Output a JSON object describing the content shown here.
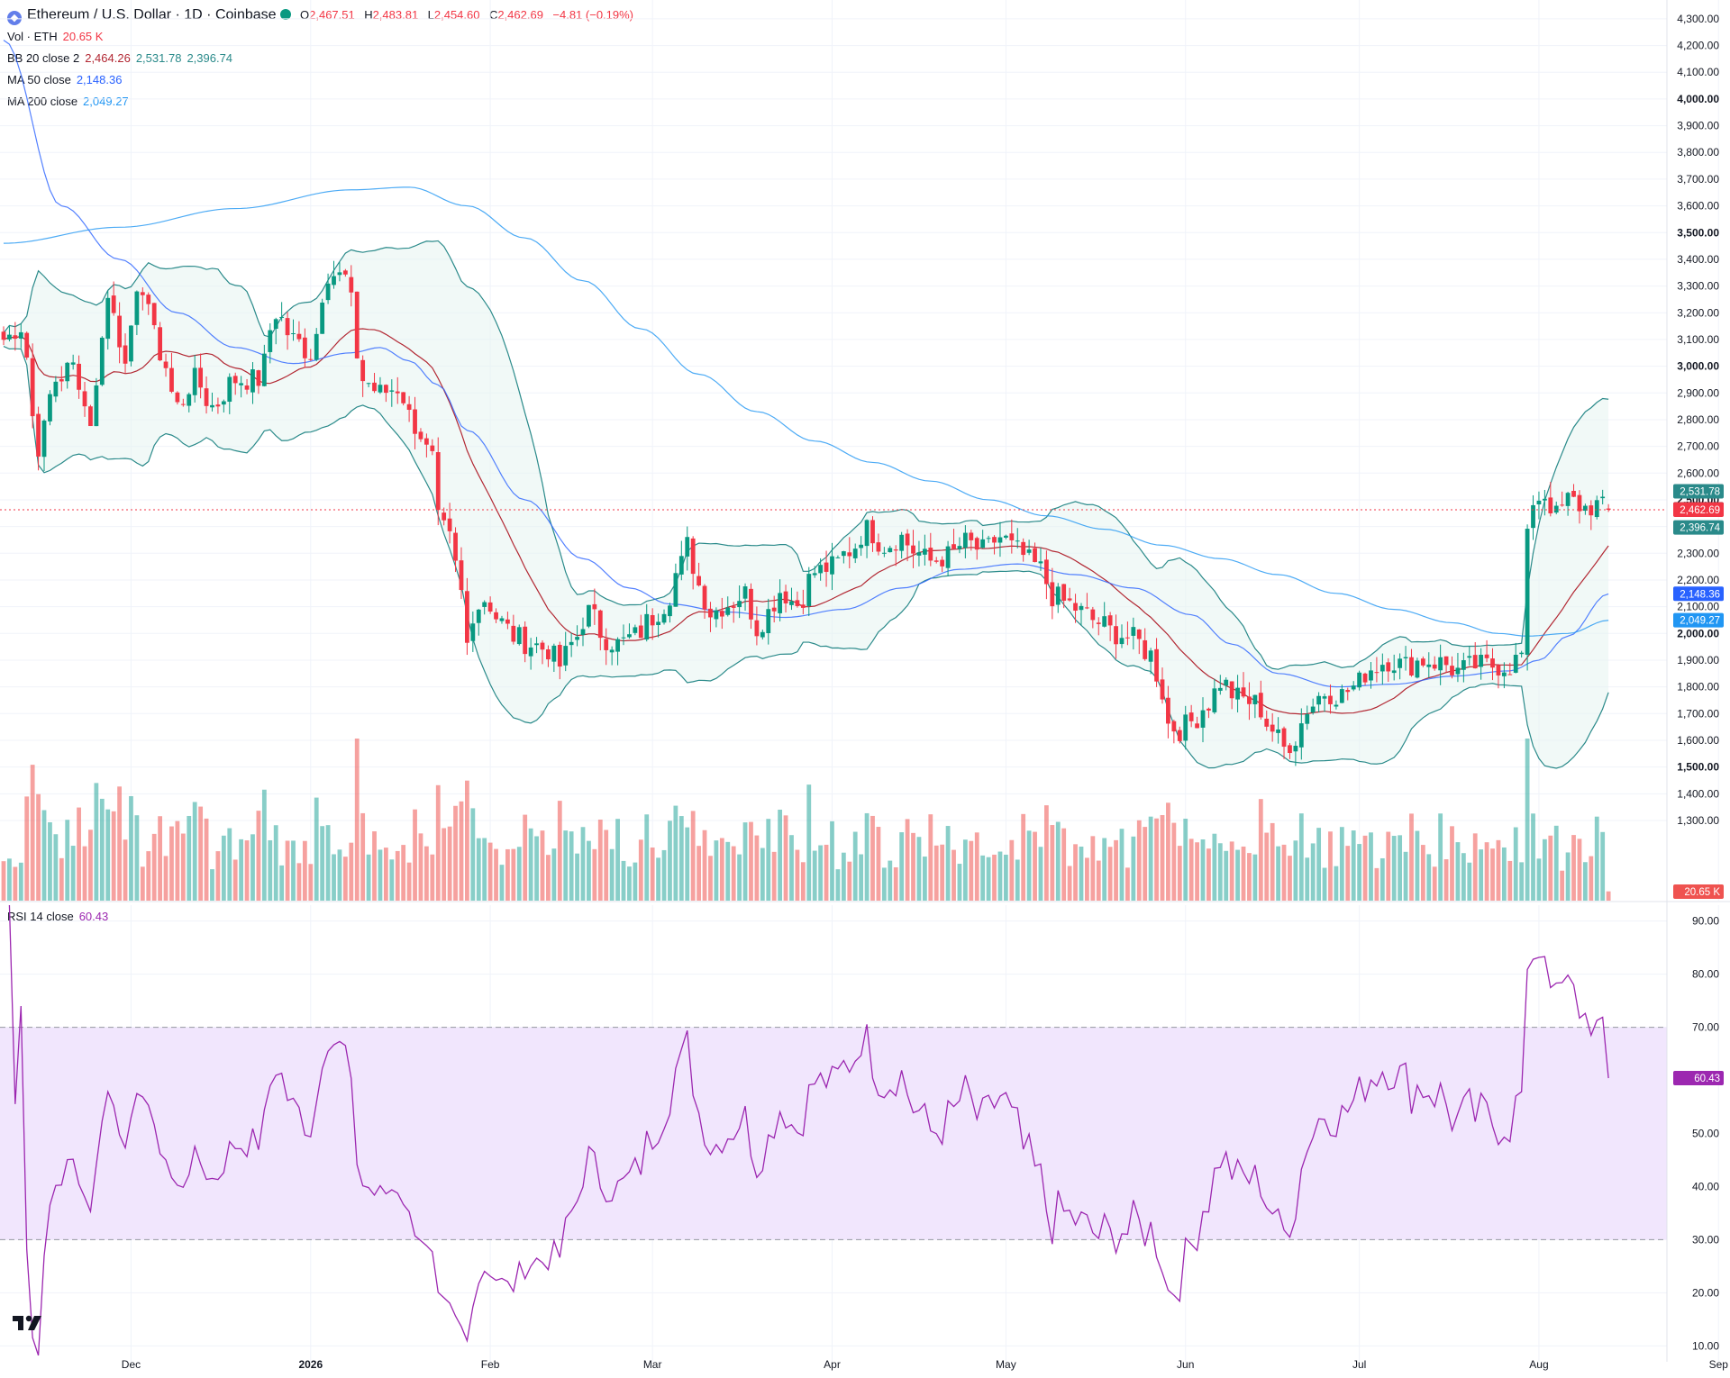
{
  "header": {
    "symbol": "Ethereum / U.S. Dollar · 1D · Coinbase",
    "ohlc": {
      "o_label": "O",
      "o": "2,467.51",
      "h_label": "H",
      "h": "2,483.81",
      "l_label": "L",
      "l": "2,454.60",
      "c_label": "C",
      "c": "2,462.69",
      "change": "−4.81 (−0.19%)"
    }
  },
  "indicators": {
    "vol": {
      "label": "Vol · ETH",
      "value": "20.65 K"
    },
    "bb": {
      "label": "BB 20 close 2",
      "basis": "2,464.26",
      "upper": "2,531.78",
      "lower": "2,396.74"
    },
    "ma50": {
      "label": "MA 50 close",
      "value": "2,148.36"
    },
    "ma200": {
      "label": "MA 200 close",
      "value": "2,049.27"
    },
    "rsi": {
      "label": "RSI 14 close",
      "value": "60.43"
    }
  },
  "colors": {
    "up": "#089981",
    "down": "#f23645",
    "ma20": "#b22833",
    "bb_band": "#2a8a8a",
    "ma50": "#2962ff",
    "ma200": "#2196f3",
    "rsi_line": "#9c27b0",
    "rsi_band": "#f1e6fd",
    "vol_up": "#26a69a",
    "vol_down": "#ef5350"
  },
  "chart_data": [
    {
      "type": "candlestick",
      "title": "Ethereum / U.S. Dollar · 1D · Coinbase",
      "ylim": [
        1000,
        4330
      ],
      "y_ticks": [
        4300,
        4200,
        4100,
        4000,
        3900,
        3800,
        3700,
        3600,
        3500,
        3400,
        3300,
        3200,
        3100,
        3000,
        2900,
        2800,
        2700,
        2600,
        2500,
        2400,
        2300,
        2200,
        2100,
        2000,
        1900,
        1800,
        1700,
        1600,
        1500,
        1400,
        1300
      ],
      "y_tick_labels": [
        "4,300.00",
        "4,200.00",
        "4,100.00",
        "4,000.00",
        "3,900.00",
        "3,800.00",
        "3,700.00",
        "3,600.00",
        "3,500.00",
        "3,400.00",
        "3,300.00",
        "3,200.00",
        "3,100.00",
        "3,000.00",
        "2,900.00",
        "2,800.00",
        "2,700.00",
        "2,600.00",
        "2,500.00",
        "2,400.00",
        "2,300.00",
        "2,200.00",
        "2,100.00",
        "2,000.00",
        "1,900.00",
        "1,800.00",
        "1,700.00",
        "1,600.00",
        "1,500.00",
        "1,400.00",
        "1,300.00"
      ],
      "bold_ticks": [
        "4,000.00",
        "3,500.00",
        "3,000.00",
        "2,500.00",
        "2,000.00",
        "1,500.00"
      ],
      "x_labels": [
        {
          "label": "Dec",
          "day": 22
        },
        {
          "label": "2026",
          "day": 53
        },
        {
          "label": "Feb",
          "day": 84
        },
        {
          "label": "Mar",
          "day": 112
        },
        {
          "label": "Apr",
          "day": 143
        },
        {
          "label": "May",
          "day": 173
        },
        {
          "label": "Jun",
          "day": 204
        },
        {
          "label": "Jul",
          "day": 234
        },
        {
          "label": "Aug",
          "day": 265
        },
        {
          "label": "Sep",
          "day": 296
        }
      ],
      "price_anchors": [
        [
          0,
          3100
        ],
        [
          3,
          3150
        ],
        [
          6,
          2700
        ],
        [
          9,
          2950
        ],
        [
          12,
          3000
        ],
        [
          15,
          2800
        ],
        [
          18,
          3250
        ],
        [
          21,
          3050
        ],
        [
          24,
          3300
        ],
        [
          27,
          3050
        ],
        [
          30,
          2850
        ],
        [
          33,
          2950
        ],
        [
          36,
          2850
        ],
        [
          40,
          2950
        ],
        [
          44,
          2950
        ],
        [
          47,
          3200
        ],
        [
          50,
          3100
        ],
        [
          53,
          3050
        ],
        [
          56,
          3350
        ],
        [
          59,
          3330
        ],
        [
          62,
          2950
        ],
        [
          65,
          2900
        ],
        [
          68,
          2920
        ],
        [
          71,
          2780
        ],
        [
          74,
          2650
        ],
        [
          75,
          2420
        ],
        [
          77,
          2350
        ],
        [
          79,
          2150
        ],
        [
          80,
          1960
        ],
        [
          81,
          2080
        ],
        [
          83,
          2130
        ],
        [
          86,
          2040
        ],
        [
          88,
          1990
        ],
        [
          91,
          1960
        ],
        [
          94,
          1940
        ],
        [
          96,
          1880
        ],
        [
          98,
          1960
        ],
        [
          101,
          2080
        ],
        [
          104,
          1980
        ],
        [
          106,
          1960
        ],
        [
          109,
          1990
        ],
        [
          112,
          2060
        ],
        [
          114,
          2110
        ],
        [
          117,
          2260
        ],
        [
          118,
          2330
        ],
        [
          120,
          2180
        ],
        [
          122,
          2080
        ],
        [
          125,
          2110
        ],
        [
          128,
          2150
        ],
        [
          130,
          2020
        ],
        [
          132,
          2080
        ],
        [
          134,
          2160
        ],
        [
          137,
          2110
        ],
        [
          140,
          2230
        ],
        [
          143,
          2250
        ],
        [
          146,
          2310
        ],
        [
          149,
          2390
        ],
        [
          152,
          2330
        ],
        [
          155,
          2360
        ],
        [
          157,
          2310
        ],
        [
          160,
          2270
        ],
        [
          163,
          2290
        ],
        [
          166,
          2340
        ],
        [
          169,
          2310
        ],
        [
          172,
          2360
        ],
        [
          175,
          2310
        ],
        [
          177,
          2270
        ],
        [
          179,
          2240
        ],
        [
          181,
          2140
        ],
        [
          184,
          2110
        ],
        [
          186,
          2080
        ],
        [
          189,
          2040
        ],
        [
          192,
          2000
        ],
        [
          195,
          1980
        ],
        [
          198,
          1920
        ],
        [
          200,
          1780
        ],
        [
          201,
          1660
        ],
        [
          203,
          1640
        ],
        [
          205,
          1670
        ],
        [
          208,
          1740
        ],
        [
          210,
          1820
        ],
        [
          213,
          1760
        ],
        [
          216,
          1740
        ],
        [
          219,
          1640
        ],
        [
          221,
          1570
        ],
        [
          223,
          1610
        ],
        [
          225,
          1720
        ],
        [
          228,
          1780
        ],
        [
          231,
          1770
        ],
        [
          233,
          1800
        ],
        [
          236,
          1870
        ],
        [
          239,
          1900
        ],
        [
          242,
          1880
        ],
        [
          245,
          1900
        ],
        [
          248,
          1890
        ],
        [
          251,
          1860
        ],
        [
          254,
          1880
        ],
        [
          257,
          1880
        ],
        [
          260,
          1880
        ],
        [
          262,
          1920
        ],
        [
          263,
          2350
        ],
        [
          264,
          2500
        ],
        [
          266,
          2520
        ],
        [
          268,
          2440
        ],
        [
          270,
          2500
        ],
        [
          273,
          2470
        ],
        [
          275,
          2480
        ],
        [
          277,
          2460
        ]
      ],
      "candle_count": 278,
      "last": {
        "open": 2467.51,
        "high": 2483.81,
        "low": 2454.6,
        "close": 2462.69
      },
      "price_labels": [
        {
          "value": 2531.78,
          "text": "2,531.78",
          "color": "#2a8a8a"
        },
        {
          "value": 2464.26,
          "text": "2,464.26",
          "color": "#b22833"
        },
        {
          "value": 2462.69,
          "text": "2,462.69",
          "color": "#f23645"
        },
        {
          "value": 2396.74,
          "text": "2,396.74",
          "color": "#2a8a8a"
        },
        {
          "value": 2148.36,
          "text": "2,148.36",
          "color": "#2962ff"
        },
        {
          "value": 2049.27,
          "text": "2,049.27",
          "color": "#2196f3"
        }
      ],
      "ma200_anchors": [
        [
          0,
          3460
        ],
        [
          20,
          3520
        ],
        [
          40,
          3590
        ],
        [
          60,
          3660
        ],
        [
          70,
          3670
        ],
        [
          80,
          3600
        ],
        [
          90,
          3480
        ],
        [
          100,
          3320
        ],
        [
          110,
          3140
        ],
        [
          120,
          2970
        ],
        [
          130,
          2830
        ],
        [
          140,
          2720
        ],
        [
          150,
          2640
        ],
        [
          160,
          2570
        ],
        [
          170,
          2500
        ],
        [
          180,
          2440
        ],
        [
          190,
          2390
        ],
        [
          200,
          2330
        ],
        [
          210,
          2280
        ],
        [
          220,
          2220
        ],
        [
          230,
          2150
        ],
        [
          240,
          2090
        ],
        [
          250,
          2040
        ],
        [
          258,
          2000
        ],
        [
          263,
          1990
        ],
        [
          270,
          2000
        ],
        [
          277,
          2049
        ]
      ],
      "ma50_anchors": [
        [
          0,
          4220
        ],
        [
          10,
          3600
        ],
        [
          20,
          3400
        ],
        [
          30,
          3200
        ],
        [
          40,
          3070
        ],
        [
          50,
          3010
        ],
        [
          60,
          3050
        ],
        [
          65,
          3070
        ],
        [
          70,
          3020
        ],
        [
          75,
          2930
        ],
        [
          80,
          2760
        ],
        [
          90,
          2500
        ],
        [
          100,
          2280
        ],
        [
          108,
          2170
        ],
        [
          115,
          2110
        ],
        [
          125,
          2080
        ],
        [
          135,
          2060
        ],
        [
          145,
          2090
        ],
        [
          155,
          2170
        ],
        [
          165,
          2240
        ],
        [
          175,
          2260
        ],
        [
          185,
          2220
        ],
        [
          195,
          2170
        ],
        [
          205,
          2070
        ],
        [
          212,
          1960
        ],
        [
          220,
          1850
        ],
        [
          230,
          1800
        ],
        [
          240,
          1810
        ],
        [
          250,
          1840
        ],
        [
          260,
          1860
        ],
        [
          265,
          1900
        ],
        [
          270,
          1990
        ],
        [
          277,
          2148
        ]
      ],
      "volume": {
        "ylim": [
          0,
          360
        ],
        "last": 20.65,
        "label": "20.65 K"
      }
    },
    {
      "type": "line",
      "title": "RSI 14 close",
      "ylim": [
        7,
        93
      ],
      "y_ticks": [
        90,
        80,
        70,
        60,
        50,
        40,
        30,
        20,
        10
      ],
      "y_tick_labels": [
        "90.00",
        "80.00",
        "70.00",
        "60.00",
        "50.00",
        "40.00",
        "30.00",
        "20.00",
        "10.00"
      ],
      "band": [
        30,
        70
      ],
      "last": {
        "value": 60.43,
        "text": "60.43"
      }
    }
  ]
}
